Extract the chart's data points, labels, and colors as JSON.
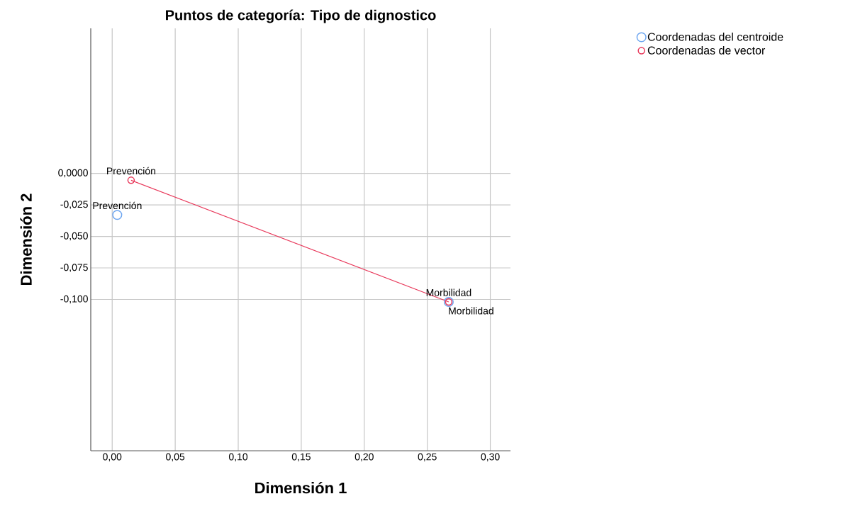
{
  "chart_data": {
    "type": "scatter",
    "title": "Puntos de categoría: Tipo de dignostico",
    "xlabel": "Dimensión 1",
    "ylabel": "Dimensión 2",
    "xlim": [
      -0.017,
      0.316
    ],
    "ylim": [
      -0.22,
      0.115
    ],
    "xticks": [
      {
        "value": 0,
        "label": "0,00"
      },
      {
        "value": 0.05,
        "label": "0,05"
      },
      {
        "value": 0.1,
        "label": "0,10"
      },
      {
        "value": 0.15,
        "label": "0,15"
      },
      {
        "value": 0.2,
        "label": "0,20"
      },
      {
        "value": 0.25,
        "label": "0,25"
      },
      {
        "value": 0.3,
        "label": "0,30"
      }
    ],
    "yticks": [
      {
        "value": 0,
        "label": "0,0000"
      },
      {
        "value": -0.025,
        "label": "-0,025"
      },
      {
        "value": -0.05,
        "label": "-0,050"
      },
      {
        "value": -0.075,
        "label": "-0,075"
      },
      {
        "value": -0.1,
        "label": "-0,100"
      }
    ],
    "grid": true,
    "legend": "top right",
    "marker": "circle",
    "series": [
      {
        "name": "Coordenadas del centroide",
        "type": "scatter",
        "color": "#6ea6f0",
        "x": [
          0.004,
          0.267
        ],
        "values": [
          -0.033,
          -0.102
        ]
      },
      {
        "name": "Coordenadas de vector",
        "type": "line",
        "color": "#e8395b",
        "x": [
          0.015,
          0.267
        ],
        "values": [
          -0.0055,
          -0.102
        ]
      }
    ],
    "annotations": [
      {
        "text": "Prevención",
        "x": 0.015,
        "y": -0.0055
      },
      {
        "text": "Prevención",
        "x": 0.004,
        "y": -0.033
      },
      {
        "text": "Morbilidad",
        "x": 0.267,
        "y": -0.102
      },
      {
        "text": "Morbilidad",
        "x": 0.267,
        "y": -0.102
      }
    ]
  }
}
